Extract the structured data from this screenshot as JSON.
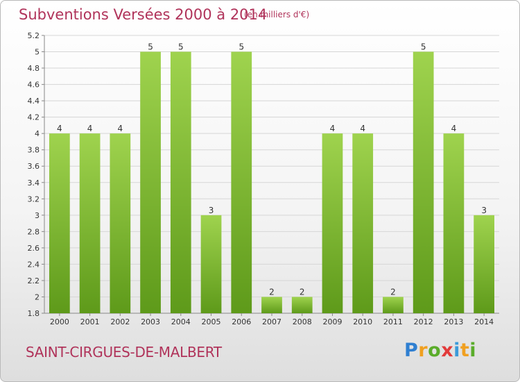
{
  "title": "Subventions Versées 2000 à 2014",
  "subtitle": "(en milliers d'€)",
  "town": "SAINT-CIRGUES-DE-MALBERT",
  "logo": {
    "letters": [
      "P",
      "r",
      "o",
      "x",
      "i",
      "t",
      "i"
    ],
    "colors": [
      "#2f7fd1",
      "#f0a020",
      "#5aac2a",
      "#e23b3b",
      "#3a9ad9",
      "#f0a020",
      "#5aac2a"
    ]
  },
  "chart_data": {
    "type": "bar",
    "categories": [
      "2000",
      "2001",
      "2002",
      "2003",
      "2004",
      "2005",
      "2006",
      "2007",
      "2008",
      "2009",
      "2010",
      "2011",
      "2012",
      "2013",
      "2014"
    ],
    "values": [
      4,
      4,
      4,
      5,
      5,
      3,
      5,
      2,
      2,
      4,
      4,
      2,
      5,
      4,
      3
    ],
    "data_labels": [
      "4",
      "4",
      "4",
      "5",
      "5",
      "3",
      "5",
      "2",
      "2",
      "4",
      "4",
      "2",
      "5",
      "4",
      "3"
    ],
    "y_ticks": [
      "1.8",
      "2",
      "2.2",
      "2.4",
      "2.6",
      "2.8",
      "3",
      "3.2",
      "3.4",
      "3.6",
      "3.8",
      "4",
      "4.2",
      "4.4",
      "4.6",
      "4.8",
      "5",
      "5.2"
    ],
    "ylim": [
      1.8,
      5.2
    ],
    "grid": true,
    "bar_color": "#8cc63f",
    "bar_color_dark": "#5e9a1a"
  }
}
